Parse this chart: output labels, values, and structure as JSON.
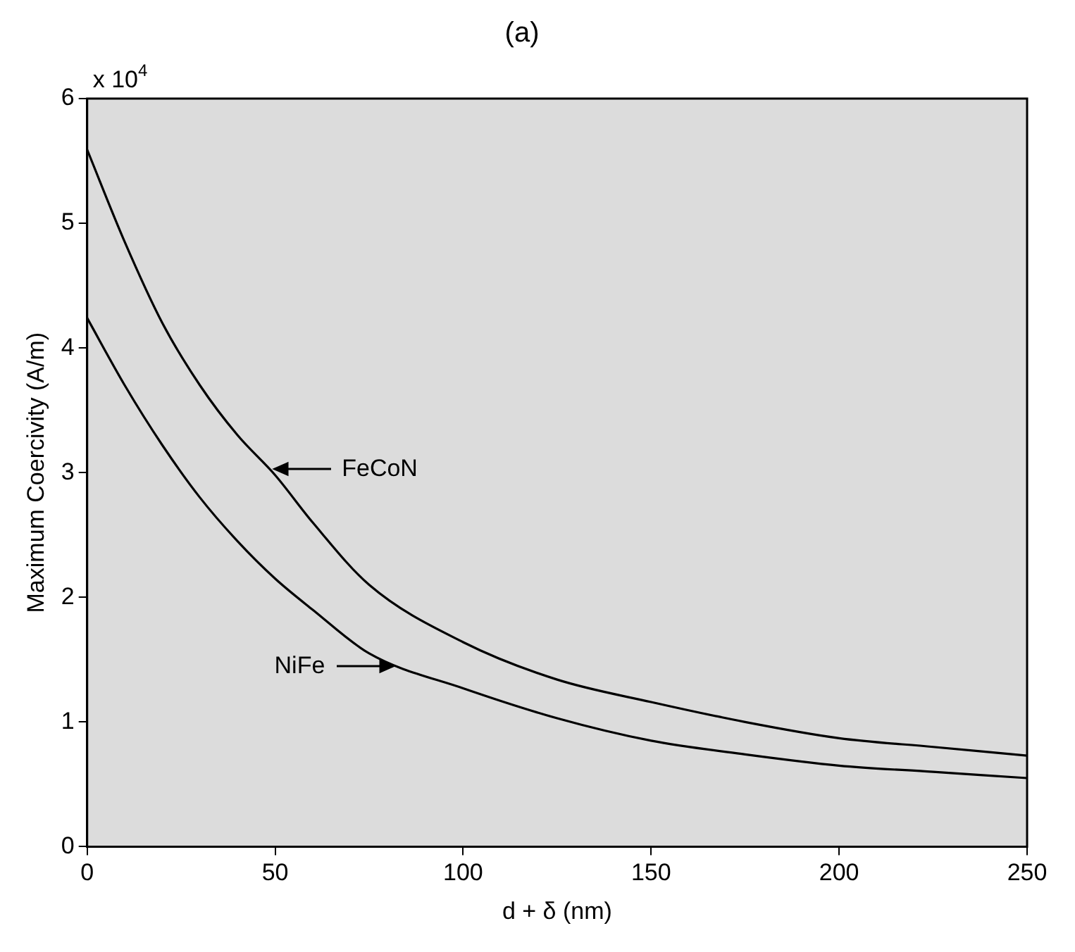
{
  "chart_data": {
    "type": "line",
    "title": "(a)",
    "xlabel": "d + δ (nm)",
    "ylabel": "Maximum Coercivity (A/m)",
    "x": [
      0,
      10,
      20,
      30,
      40,
      50,
      60,
      75,
      100,
      125,
      150,
      175,
      200,
      225,
      250
    ],
    "series": [
      {
        "color": "#000000",
        "values": [
          5.59,
          4.85,
          4.2,
          3.7,
          3.3,
          2.98,
          2.6,
          2.1,
          1.64,
          1.34,
          1.16,
          1.0,
          0.87,
          0.8,
          0.73
        ]
      },
      {
        "color": "#000000",
        "values": [
          4.24,
          3.7,
          3.22,
          2.8,
          2.45,
          2.15,
          1.9,
          1.55,
          1.27,
          1.03,
          0.85,
          0.74,
          0.65,
          0.6,
          0.55
        ]
      }
    ],
    "annotations": [
      "x 10$^{4}$",
      {
        "text": "FeCoN",
        "x": 49,
        "y": 3.03
      },
      {
        "text": "NiFe",
        "x": 82,
        "y": 1.45
      }
    ],
    "xlim": [
      0,
      250
    ],
    "xticks": [
      0,
      50,
      100,
      150,
      200,
      250
    ],
    "ylim": [
      0,
      6
    ],
    "yticks": [
      0,
      1,
      2,
      3,
      4,
      5,
      6
    ],
    "grid": false,
    "legend": false,
    "marker": "none",
    "line_style": "solid"
  }
}
